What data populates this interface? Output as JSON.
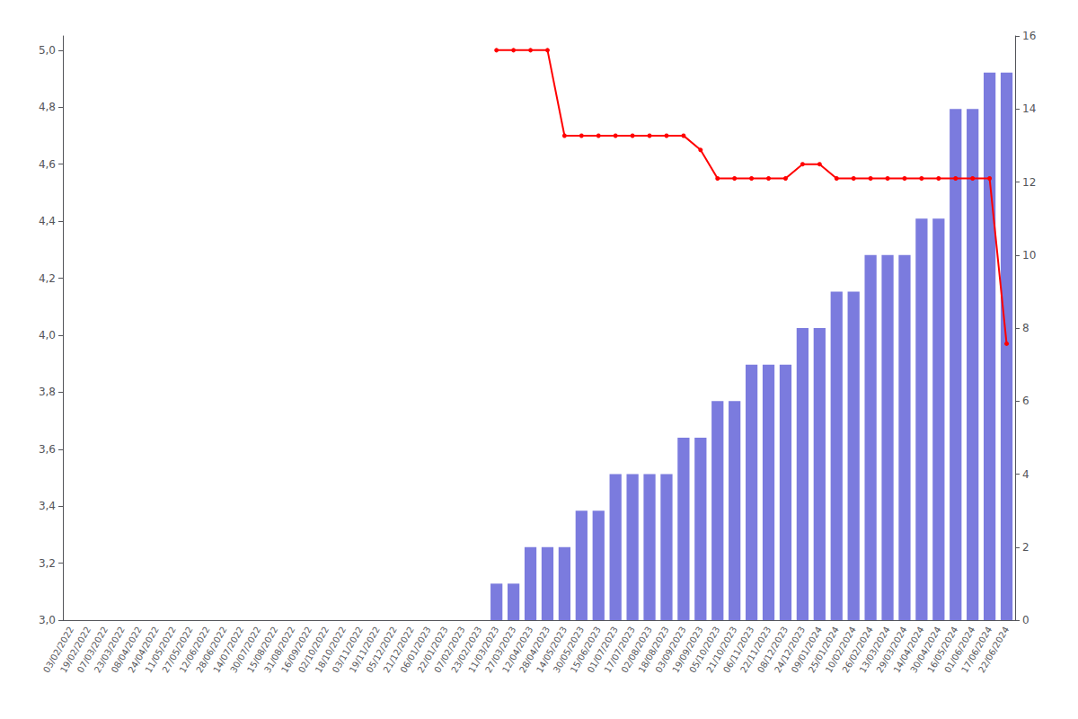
{
  "chart_data": {
    "type": "bar",
    "categories": [
      "03/02/2022",
      "19/02/2022",
      "07/03/2022",
      "23/03/2022",
      "08/04/2022",
      "24/04/2022",
      "11/05/2022",
      "27/05/2022",
      "12/06/2022",
      "28/06/2022",
      "14/07/2022",
      "30/07/2022",
      "15/08/2022",
      "31/08/2022",
      "16/09/2022",
      "02/10/2022",
      "18/10/2022",
      "03/11/2022",
      "19/11/2022",
      "05/12/2022",
      "21/12/2022",
      "06/01/2023",
      "22/01/2023",
      "07/02/2023",
      "23/02/2023",
      "11/03/2023",
      "27/03/2023",
      "12/04/2023",
      "28/04/2023",
      "14/05/2023",
      "30/05/2023",
      "15/06/2023",
      "01/07/2023",
      "17/07/2023",
      "02/08/2023",
      "18/08/2023",
      "03/09/2023",
      "19/09/2023",
      "05/10/2023",
      "21/10/2023",
      "06/11/2023",
      "22/11/2023",
      "08/12/2023",
      "24/12/2023",
      "09/01/2024",
      "25/01/2024",
      "10/02/2024",
      "26/02/2024",
      "13/03/2024",
      "29/03/2024",
      "14/04/2024",
      "30/04/2024",
      "16/05/2024",
      "01/06/2024",
      "17/06/2024",
      "22/06/2024"
    ],
    "series": [
      {
        "type": "bar",
        "color": "#7b7bde",
        "axis": "y2",
        "values": [
          0,
          0,
          0,
          0,
          0,
          0,
          0,
          0,
          0,
          0,
          0,
          0,
          0,
          0,
          0,
          0,
          0,
          0,
          0,
          0,
          0,
          0,
          0,
          0,
          0,
          1,
          1,
          2,
          2,
          2,
          3,
          3,
          4,
          4,
          4,
          4,
          5,
          5,
          6,
          6,
          7,
          7,
          7,
          8,
          8,
          9,
          9,
          10,
          10,
          10,
          11,
          11,
          14,
          14,
          15,
          15
        ]
      },
      {
        "type": "line",
        "color": "#ff0000",
        "marker": "circle",
        "values": [
          null,
          null,
          null,
          null,
          null,
          null,
          null,
          null,
          null,
          null,
          null,
          null,
          null,
          null,
          null,
          null,
          null,
          null,
          null,
          null,
          null,
          null,
          null,
          null,
          null,
          5.0,
          5.0,
          5.0,
          5.0,
          4.7,
          4.7,
          4.7,
          4.7,
          4.7,
          4.7,
          4.7,
          4.7,
          4.65,
          4.55,
          4.55,
          4.55,
          4.55,
          4.55,
          4.6,
          4.6,
          4.55,
          4.55,
          4.55,
          4.55,
          4.55,
          4.55,
          4.55,
          4.55,
          4.55,
          4.55,
          3.97
        ]
      }
    ],
    "ylim": [
      3.0,
      5.05
    ],
    "yticks": [
      {
        "value": 3.0,
        "label": "3,0"
      },
      {
        "value": 3.2,
        "label": "3,2"
      },
      {
        "value": 3.4,
        "label": "3,4"
      },
      {
        "value": 3.6,
        "label": "3,6"
      },
      {
        "value": 3.8,
        "label": "3,8"
      },
      {
        "value": 4.0,
        "label": "4,0"
      },
      {
        "value": 4.2,
        "label": "4,2"
      },
      {
        "value": 4.4,
        "label": "4,4"
      },
      {
        "value": 4.6,
        "label": "4,6"
      },
      {
        "value": 4.8,
        "label": "4,8"
      },
      {
        "value": 5.0,
        "label": "5,0"
      }
    ],
    "y2lim": [
      0,
      16
    ],
    "y2ticks": [
      0,
      2,
      4,
      6,
      8,
      10,
      12,
      14,
      16
    ],
    "grid": false
  }
}
